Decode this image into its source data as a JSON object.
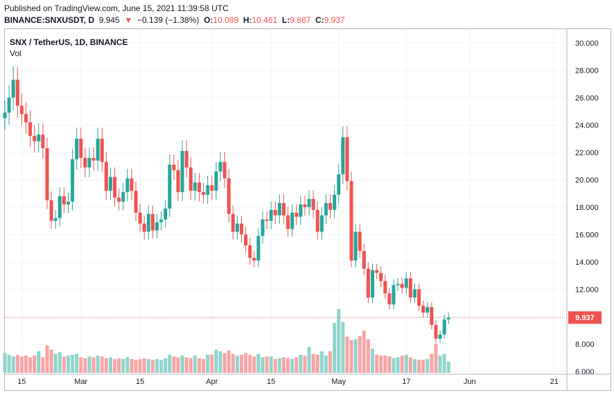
{
  "header": {
    "published": "Published on TradingView.com, June 15, 2021 11:39:58 UTC",
    "symbol": "BINANCE:SNXUSDT, D",
    "last": "9.945",
    "arrow": "▼",
    "change": "−0.139 (−1.38%)",
    "o_label": "O:",
    "o": "10.089",
    "h_label": "H:",
    "h": "10.461",
    "l_label": "L:",
    "l": "9.887",
    "c_label": "C:",
    "c": "9.937"
  },
  "legend": {
    "title": "SNX / TetherUS, 1D, BINANCE",
    "vol": "Vol"
  },
  "colors": {
    "up": "#26a69a",
    "down": "#ef5350",
    "up_vol": "#8fd4cb",
    "down_vol": "#f7a5a6",
    "grid": "#f0f3fa",
    "axis": "#b2b5be"
  },
  "chart_data": {
    "type": "candlestick",
    "title": "SNX / TetherUS, 1D, BINANCE",
    "ylim": [
      5.8,
      31.0
    ],
    "y_ticks": [
      "6.000",
      "8.000",
      "10.000",
      "12.000",
      "14.000",
      "16.000",
      "18.000",
      "20.000",
      "22.000",
      "24.000",
      "26.000",
      "28.000",
      "30.000"
    ],
    "x_ticks": [
      {
        "label": "15",
        "date": "2021-02-15"
      },
      {
        "label": "Mar",
        "date": "2021-03-01"
      },
      {
        "label": "15",
        "date": "2021-03-15"
      },
      {
        "label": "Apr",
        "date": "2021-04-01"
      },
      {
        "label": "15",
        "date": "2021-04-15"
      },
      {
        "label": "May",
        "date": "2021-05-01"
      },
      {
        "label": "17",
        "date": "2021-05-17"
      },
      {
        "label": "Jun",
        "date": "2021-06-01"
      },
      {
        "label": "21",
        "date": "2021-06-21"
      }
    ],
    "x_range": [
      "2021-02-11",
      "2021-06-24"
    ],
    "last_price_label": "9.937",
    "last_price": 9.937,
    "close": [
      24.9,
      26.0,
      27.3,
      25.4,
      24.8,
      24.2,
      23.2,
      22.8,
      23.3,
      22.3,
      18.5,
      17.0,
      17.2,
      18.8,
      18.2,
      18.4,
      21.5,
      23.0,
      21.6,
      20.9,
      21.6,
      21.4,
      23.0,
      21.3,
      19.2,
      20.2,
      18.7,
      18.4,
      19.1,
      20.1,
      19.2,
      17.6,
      16.8,
      16.2,
      17.5,
      16.3,
      16.9,
      17.1,
      17.9,
      21.1,
      20.7,
      19.1,
      22.1,
      20.9,
      19.2,
      19.8,
      19.1,
      18.9,
      19.6,
      19.2,
      20.6,
      21.3,
      20.1,
      17.5,
      16.2,
      16.8,
      16.0,
      15.2,
      14.3,
      14.1,
      15.9,
      17.1,
      17.0,
      17.8,
      17.4,
      18.3,
      17.4,
      16.4,
      17.6,
      17.3,
      18.2,
      18.0,
      18.6,
      17.8,
      16.2,
      17.4,
      18.3,
      17.8,
      18.9,
      20.4,
      23.1,
      19.9,
      14.1,
      16.2,
      14.8,
      13.5,
      11.4,
      13.4,
      13.2,
      12.6,
      11.7,
      10.9,
      12.3,
      12.4,
      12.1,
      12.8,
      11.4,
      12.0,
      10.8,
      10.3,
      10.7,
      9.4,
      8.4,
      8.7,
      9.8,
      9.937
    ],
    "volume": [
      23,
      21,
      19,
      21,
      19,
      20,
      18,
      20,
      25,
      18,
      32,
      27,
      22,
      24,
      19,
      20,
      21,
      22,
      18,
      17,
      19,
      18,
      20,
      19,
      17,
      18,
      16,
      17,
      16,
      18,
      16,
      15,
      16,
      17,
      16,
      15,
      16,
      15,
      17,
      21,
      19,
      18,
      20,
      18,
      17,
      20,
      17,
      16,
      21,
      21,
      27,
      25,
      23,
      26,
      22,
      20,
      21,
      23,
      21,
      19,
      22,
      18,
      19,
      19,
      16,
      17,
      18,
      17,
      16,
      18,
      21,
      20,
      30,
      22,
      21,
      25,
      20,
      25,
      58,
      74,
      59,
      42,
      38,
      39,
      43,
      49,
      39,
      28,
      21,
      20,
      20,
      19,
      17,
      18,
      20,
      21,
      18,
      16,
      15,
      15,
      16,
      22,
      34,
      20,
      22,
      13
    ]
  }
}
